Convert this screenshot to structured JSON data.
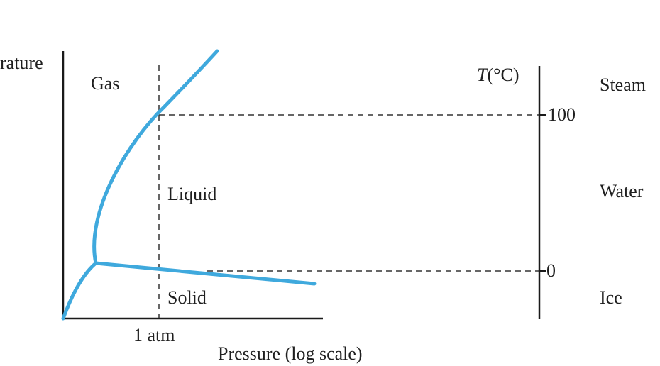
{
  "phase_diagram": {
    "y_axis_label": "rature",
    "x_axis_label": "Pressure (log scale)",
    "pressure_marker": "1 atm",
    "regions": {
      "gas": "Gas",
      "liquid": "Liquid",
      "solid": "Solid"
    },
    "curve_color": "#3fa9dd",
    "axis_color": "#1a1a1a",
    "dash_color": "#333333"
  },
  "thermometer": {
    "axis_label_symbol": "T",
    "axis_label_unit": "(°C)",
    "ticks": [
      {
        "value": 100,
        "label": "100"
      },
      {
        "value": 0,
        "label": "0"
      }
    ],
    "states": {
      "steam": "Steam",
      "water": "Water",
      "ice": "Ice"
    }
  }
}
